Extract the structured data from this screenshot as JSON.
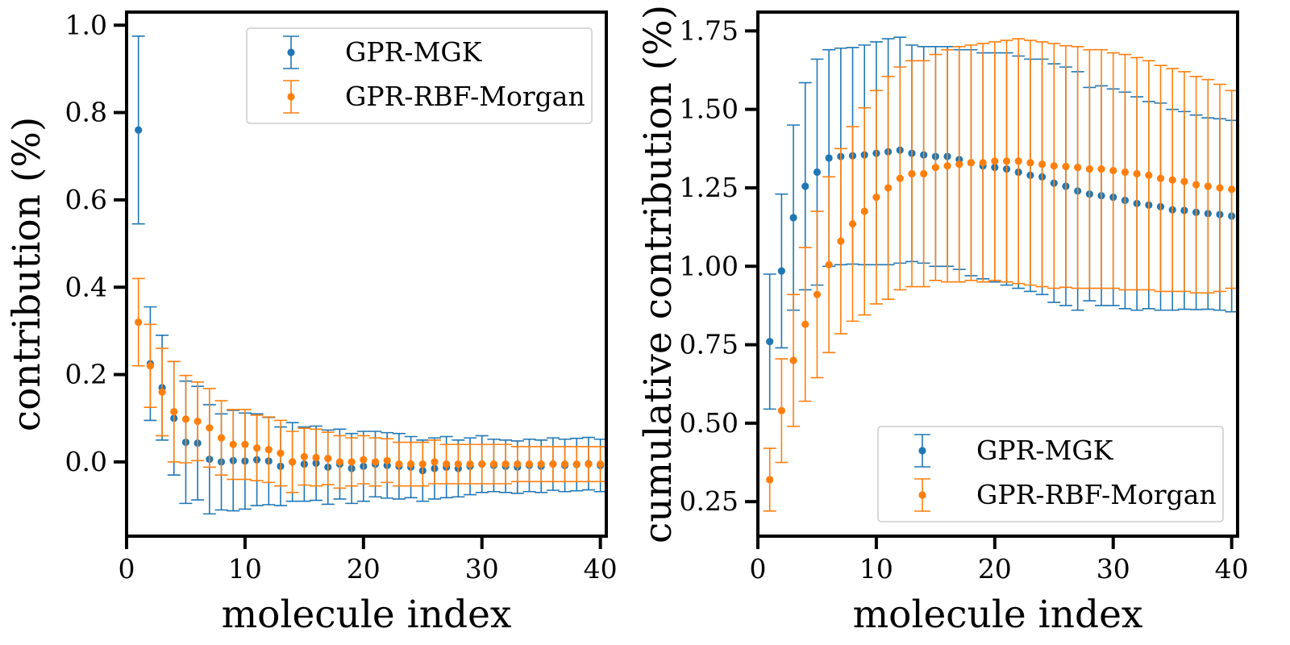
{
  "chart_data": [
    {
      "type": "scatter",
      "xlabel": "molecule index",
      "ylabel": "contribution (%)",
      "xlim": [
        0,
        40.5
      ],
      "ylim": [
        -0.17,
        1.03
      ],
      "xticks": [
        0,
        10,
        20,
        30,
        40
      ],
      "xtick_labels": [
        "0",
        "10",
        "20",
        "30",
        "40"
      ],
      "yticks": [
        0.0,
        0.2,
        0.4,
        0.6,
        0.8,
        1.0
      ],
      "ytick_labels": [
        "0.0",
        "0.2",
        "0.4",
        "0.6",
        "0.8",
        "1.0"
      ],
      "legend_position": "upper right",
      "series": [
        {
          "name": "GPR-MGK",
          "color": "#1f77b4",
          "x": [
            1,
            2,
            3,
            4,
            5,
            6,
            7,
            8,
            9,
            10,
            11,
            12,
            13,
            14,
            15,
            16,
            17,
            18,
            19,
            20,
            21,
            22,
            23,
            24,
            25,
            26,
            27,
            28,
            29,
            30,
            31,
            32,
            33,
            34,
            35,
            36,
            37,
            38,
            39,
            40
          ],
          "y": [
            0.76,
            0.225,
            0.17,
            0.1,
            0.045,
            0.043,
            0.006,
            0.0,
            0.003,
            0.002,
            0.005,
            0.002,
            -0.01,
            0.0,
            -0.005,
            -0.003,
            -0.012,
            -0.005,
            -0.015,
            -0.01,
            -0.005,
            -0.008,
            -0.01,
            -0.012,
            -0.02,
            -0.015,
            -0.012,
            -0.015,
            -0.01,
            -0.005,
            -0.008,
            -0.01,
            -0.012,
            -0.008,
            -0.01,
            -0.005,
            -0.008,
            -0.006,
            -0.004,
            -0.008
          ],
          "err": [
            0.215,
            0.13,
            0.12,
            0.13,
            0.14,
            0.13,
            0.125,
            0.11,
            0.115,
            0.11,
            0.105,
            0.1,
            0.09,
            0.09,
            0.085,
            0.085,
            0.085,
            0.08,
            0.08,
            0.08,
            0.075,
            0.075,
            0.075,
            0.07,
            0.07,
            0.07,
            0.07,
            0.065,
            0.065,
            0.065,
            0.06,
            0.06,
            0.06,
            0.06,
            0.06,
            0.06,
            0.06,
            0.06,
            0.06,
            0.06
          ]
        },
        {
          "name": "GPR-RBF-Morgan",
          "color": "#ff7f0e",
          "x": [
            1,
            2,
            3,
            4,
            5,
            6,
            7,
            8,
            9,
            10,
            11,
            12,
            13,
            14,
            15,
            16,
            17,
            18,
            19,
            20,
            21,
            22,
            23,
            24,
            25,
            26,
            27,
            28,
            29,
            30,
            31,
            32,
            33,
            34,
            35,
            36,
            37,
            38,
            39,
            40
          ],
          "y": [
            0.32,
            0.22,
            0.16,
            0.115,
            0.098,
            0.093,
            0.078,
            0.055,
            0.04,
            0.04,
            0.032,
            0.028,
            0.02,
            0.0,
            0.012,
            0.01,
            0.008,
            0.0,
            0.0,
            0.005,
            0.0,
            0.003,
            -0.005,
            -0.005,
            -0.005,
            0.0,
            -0.005,
            -0.005,
            -0.005,
            -0.005,
            -0.005,
            -0.005,
            -0.005,
            -0.005,
            -0.005,
            -0.005,
            -0.005,
            -0.005,
            -0.005,
            -0.005
          ],
          "err": [
            0.1,
            0.095,
            0.1,
            0.115,
            0.1,
            0.09,
            0.09,
            0.085,
            0.08,
            0.08,
            0.075,
            0.075,
            0.075,
            0.07,
            0.065,
            0.065,
            0.06,
            0.06,
            0.055,
            0.055,
            0.055,
            0.05,
            0.05,
            0.05,
            0.05,
            0.05,
            0.045,
            0.045,
            0.045,
            0.045,
            0.045,
            0.045,
            0.04,
            0.04,
            0.04,
            0.04,
            0.04,
            0.04,
            0.04,
            0.04
          ]
        }
      ]
    },
    {
      "type": "scatter",
      "xlabel": "molecule index",
      "ylabel": "cumulative contribution (%)",
      "xlim": [
        0,
        40.5
      ],
      "ylim": [
        0.14,
        1.81
      ],
      "xticks": [
        0,
        10,
        20,
        30,
        40
      ],
      "xtick_labels": [
        "0",
        "10",
        "20",
        "30",
        "40"
      ],
      "yticks": [
        0.25,
        0.5,
        0.75,
        1.0,
        1.25,
        1.5,
        1.75
      ],
      "ytick_labels": [
        "0.25",
        "0.50",
        "0.75",
        "1.00",
        "1.25",
        "1.50",
        "1.75"
      ],
      "legend_position": "lower right",
      "series": [
        {
          "name": "GPR-MGK",
          "color": "#1f77b4",
          "x": [
            1,
            2,
            3,
            4,
            5,
            6,
            7,
            8,
            9,
            10,
            11,
            12,
            13,
            14,
            15,
            16,
            17,
            18,
            19,
            20,
            21,
            22,
            23,
            24,
            25,
            26,
            27,
            28,
            29,
            30,
            31,
            32,
            33,
            34,
            35,
            36,
            37,
            38,
            39,
            40
          ],
          "y": [
            0.76,
            0.985,
            1.155,
            1.255,
            1.3,
            1.345,
            1.35,
            1.352,
            1.355,
            1.36,
            1.365,
            1.37,
            1.36,
            1.355,
            1.35,
            1.35,
            1.34,
            1.33,
            1.32,
            1.315,
            1.31,
            1.3,
            1.29,
            1.285,
            1.265,
            1.255,
            1.24,
            1.23,
            1.225,
            1.22,
            1.21,
            1.2,
            1.195,
            1.19,
            1.18,
            1.178,
            1.172,
            1.168,
            1.165,
            1.16
          ],
          "err": [
            0.215,
            0.245,
            0.295,
            0.33,
            0.36,
            0.345,
            0.345,
            0.345,
            0.35,
            0.355,
            0.36,
            0.36,
            0.345,
            0.345,
            0.35,
            0.35,
            0.35,
            0.36,
            0.36,
            0.365,
            0.37,
            0.37,
            0.37,
            0.375,
            0.38,
            0.38,
            0.38,
            0.34,
            0.35,
            0.345,
            0.345,
            0.34,
            0.33,
            0.33,
            0.32,
            0.315,
            0.31,
            0.305,
            0.305,
            0.305
          ]
        },
        {
          "name": "GPR-RBF-Morgan",
          "color": "#ff7f0e",
          "x": [
            1,
            2,
            3,
            4,
            5,
            6,
            7,
            8,
            9,
            10,
            11,
            12,
            13,
            14,
            15,
            16,
            17,
            18,
            19,
            20,
            21,
            22,
            23,
            24,
            25,
            26,
            27,
            28,
            29,
            30,
            31,
            32,
            33,
            34,
            35,
            36,
            37,
            38,
            39,
            40
          ],
          "y": [
            0.32,
            0.54,
            0.7,
            0.815,
            0.91,
            1.005,
            1.08,
            1.135,
            1.175,
            1.22,
            1.25,
            1.28,
            1.295,
            1.295,
            1.315,
            1.32,
            1.325,
            1.33,
            1.33,
            1.335,
            1.335,
            1.335,
            1.33,
            1.325,
            1.32,
            1.318,
            1.315,
            1.31,
            1.31,
            1.305,
            1.3,
            1.295,
            1.29,
            1.28,
            1.275,
            1.27,
            1.26,
            1.255,
            1.25,
            1.245
          ],
          "err": [
            0.1,
            0.165,
            0.21,
            0.245,
            0.265,
            0.28,
            0.295,
            0.31,
            0.33,
            0.34,
            0.355,
            0.355,
            0.36,
            0.36,
            0.36,
            0.37,
            0.375,
            0.375,
            0.38,
            0.38,
            0.385,
            0.39,
            0.39,
            0.39,
            0.39,
            0.385,
            0.385,
            0.38,
            0.38,
            0.375,
            0.375,
            0.37,
            0.365,
            0.36,
            0.355,
            0.35,
            0.345,
            0.34,
            0.33,
            0.315
          ]
        }
      ]
    }
  ]
}
